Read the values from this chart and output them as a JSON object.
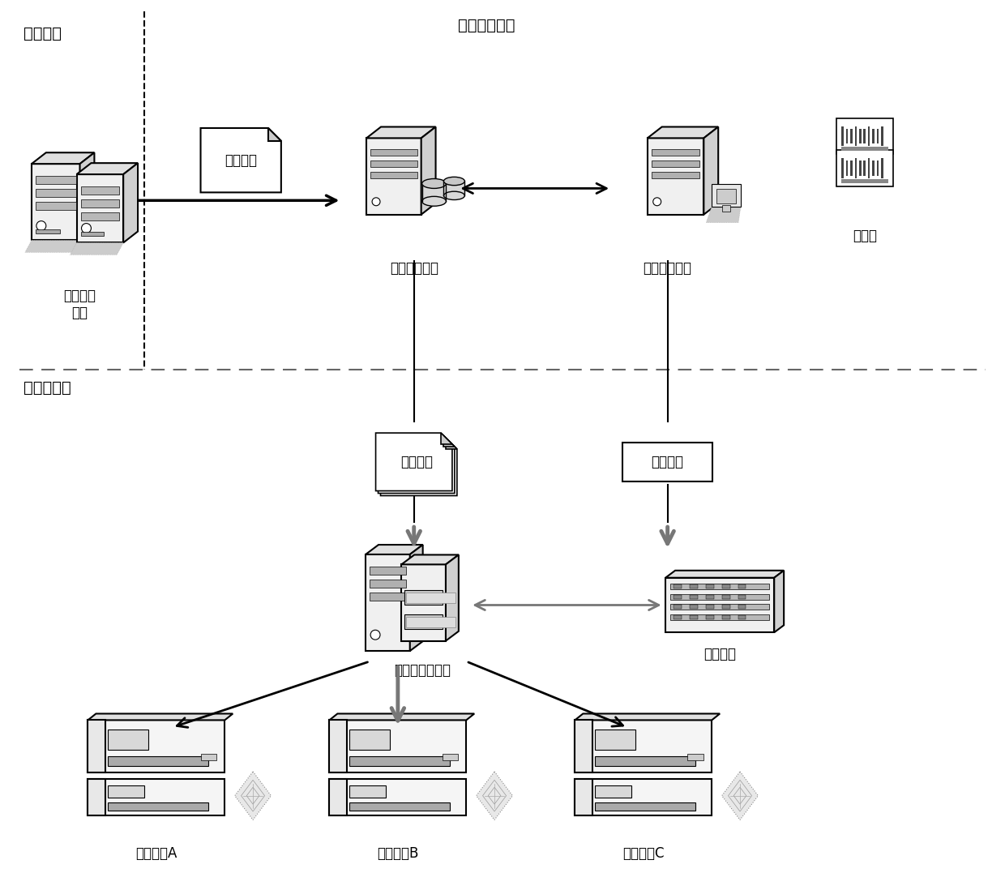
{
  "bg_color": "#ffffff",
  "line_color": "#000000",
  "labels": {
    "bank_center": "银行中心",
    "high_density_system": "高密数据系统",
    "bank_business": "银行业务\n系统",
    "bank_data": "银行数据",
    "data_prep": "数据准备系统",
    "key_mgmt": "密钥管理系统",
    "encryptor": "加密机",
    "personalization_center": "个人化中心",
    "card_file": "制卡文件",
    "transport_key": "传输密钥",
    "personalization_system": "个人化发行系统",
    "key_center": "密钥中心",
    "device_a": "发卡设备A",
    "device_b": "发卡设备B",
    "device_c": "发卡设备C"
  },
  "font_size": 14,
  "small_font_size": 12
}
